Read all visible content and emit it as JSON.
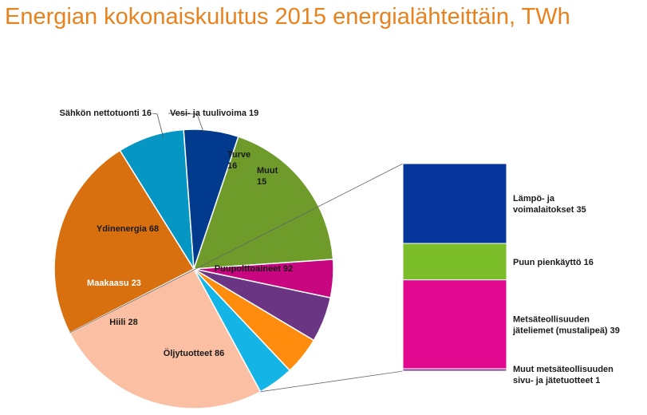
{
  "title": "Energian kokonaiskulutus 2015 energialähteittäin, TWh",
  "chart_data": {
    "type": "pie",
    "title": "Energian kokonaiskulutus 2015 energialähteittäin, TWh",
    "unit": "TWh",
    "slices": [
      {
        "name": "Puupolttoaineet",
        "value": 92,
        "label": "Puupolttoaineet 92",
        "color": "#fbbfa3"
      },
      {
        "name": "Öljytuotteet",
        "value": 86,
        "label": "Öljytuotteet 86",
        "color": "#d9700f"
      },
      {
        "name": "Hiili",
        "value": 28,
        "label": "Hiili 28",
        "color": "#0696c4"
      },
      {
        "name": "Maakaasu",
        "value": 23,
        "label": "Maakaasu 23",
        "color": "#023b8e"
      },
      {
        "name": "Ydinenergia",
        "value": 68,
        "label": "Ydinenergia 68",
        "color": "#6e9b2a"
      },
      {
        "name": "Sähkön nettotuonti",
        "value": 16,
        "label": "Sähkön nettotuonti 16",
        "color": "#c8067f"
      },
      {
        "name": "Vesi- ja tuulivoima",
        "value": 19,
        "label": "Vesi- ja tuulivoima 19",
        "color": "#6a3582"
      },
      {
        "name": "Turve",
        "value": 16,
        "label_lines": [
          "Turve",
          "16"
        ],
        "color": "#ff8c0c"
      },
      {
        "name": "Muut",
        "value": 15,
        "label_lines": [
          "Muut",
          "15"
        ],
        "color": "#14b4e6"
      }
    ],
    "breakdown": {
      "of": "Puupolttoaineet",
      "segments": [
        {
          "name": "Lämpö- ja voimalaitokset",
          "value": 35,
          "label_lines": [
            "Lämpö- ja",
            "voimalaitokset 35"
          ],
          "color": "#06369c"
        },
        {
          "name": "Puun pienkäyttö",
          "value": 16,
          "label_lines": [
            "Puun pienkäyttö 16"
          ],
          "color": "#7cbd2a"
        },
        {
          "name": "Metsäteollisuuden jäteliemet (mustalipeä)",
          "value": 39,
          "label_lines": [
            "Metsäteollisuuden",
            "jäteliemet (mustalipeä)  39"
          ],
          "color": "#e2078f"
        },
        {
          "name": "Muut metsäteollisuuden sivu- ja jätetuotteet",
          "value": 1,
          "label_lines": [
            "Muut metsäteollisuuden",
            "sivu- ja jätetuotteet  1"
          ],
          "color": "#7a3c94"
        }
      ]
    }
  }
}
